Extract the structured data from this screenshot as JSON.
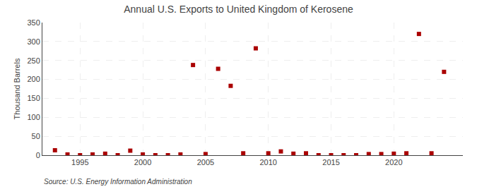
{
  "chart_data": {
    "type": "scatter",
    "title": "Annual U.S. Exports to United Kingdom of Kerosene",
    "ylabel": "Thousand Barrels",
    "annotations": [
      "Source: U.S. Energy Information Administration"
    ],
    "x": [
      1993,
      1994,
      1995,
      1996,
      1997,
      1998,
      1999,
      2000,
      2001,
      2002,
      2003,
      2004,
      2005,
      2006,
      2007,
      2008,
      2009,
      2010,
      2011,
      2012,
      2013,
      2014,
      2015,
      2016,
      2017,
      2018,
      2019,
      2020,
      2021,
      2022,
      2023,
      2024
    ],
    "values": [
      13,
      2,
      0,
      2,
      4,
      0,
      12,
      2,
      0,
      0,
      2,
      238,
      3,
      228,
      183,
      5,
      282,
      5,
      10,
      4,
      5,
      0,
      0,
      0,
      0,
      3,
      3,
      4,
      5,
      320,
      5,
      220
    ],
    "color": "#aa0000",
    "marker": "square",
    "xlim": [
      1992,
      2025.5
    ],
    "ylim": [
      0,
      350
    ],
    "xticks": [
      1995,
      2000,
      2005,
      2010,
      2015,
      2020
    ],
    "yticks": [
      0,
      50,
      100,
      150,
      200,
      250,
      300,
      350
    ],
    "grid": true
  }
}
